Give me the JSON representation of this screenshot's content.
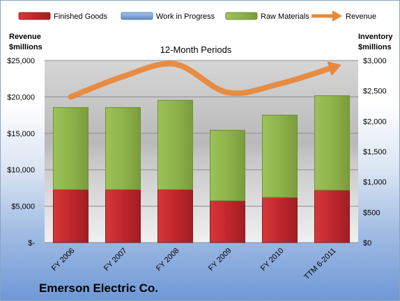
{
  "chart_data": {
    "type": "bar",
    "stacked": true,
    "subtitle": "12-Month Periods",
    "company": "Emerson Electric Co.",
    "y_left_label": [
      "Revenue",
      "$millions"
    ],
    "y_right_label": [
      "Inventory",
      "$millions"
    ],
    "categories": [
      "FY 2006",
      "FY 2007",
      "FY 2008",
      "FY 2009",
      "FY 2010",
      "TTM 6-2011"
    ],
    "ylim_left": [
      0,
      25000
    ],
    "ylim_right": [
      0,
      3000
    ],
    "left_ticks": [
      0,
      5000,
      10000,
      15000,
      20000,
      25000
    ],
    "left_tick_labels": [
      "$-",
      "$5,000",
      "$10,000",
      "$15,000",
      "$20,000",
      "$25,000"
    ],
    "right_ticks": [
      0,
      500,
      1000,
      1500,
      2000,
      2500,
      3000
    ],
    "right_tick_labels": [
      "$0",
      "$500",
      "$1,000",
      "$1,500",
      "$2,000",
      "$2,500",
      "$3,000"
    ],
    "series": [
      {
        "name": "Finished Goods",
        "axis": "right",
        "color": "#c0272d",
        "values": [
          875,
          875,
          875,
          690,
          745,
          865
        ]
      },
      {
        "name": "Work in Progress",
        "axis": "right",
        "color": "#4f81bd",
        "values": [
          0,
          0,
          0,
          0,
          0,
          0
        ]
      },
      {
        "name": "Raw Materials",
        "axis": "right",
        "color": "#8fb34b",
        "values": [
          1350,
          1350,
          1470,
          1160,
          1355,
          1555
        ]
      },
      {
        "name": "Revenue",
        "axis": "left",
        "color": "#e8883a",
        "type": "line",
        "values": [
          20000,
          22800,
          24500,
          20600,
          21800,
          24000
        ]
      }
    ],
    "grid": true,
    "legend_position": "top"
  }
}
